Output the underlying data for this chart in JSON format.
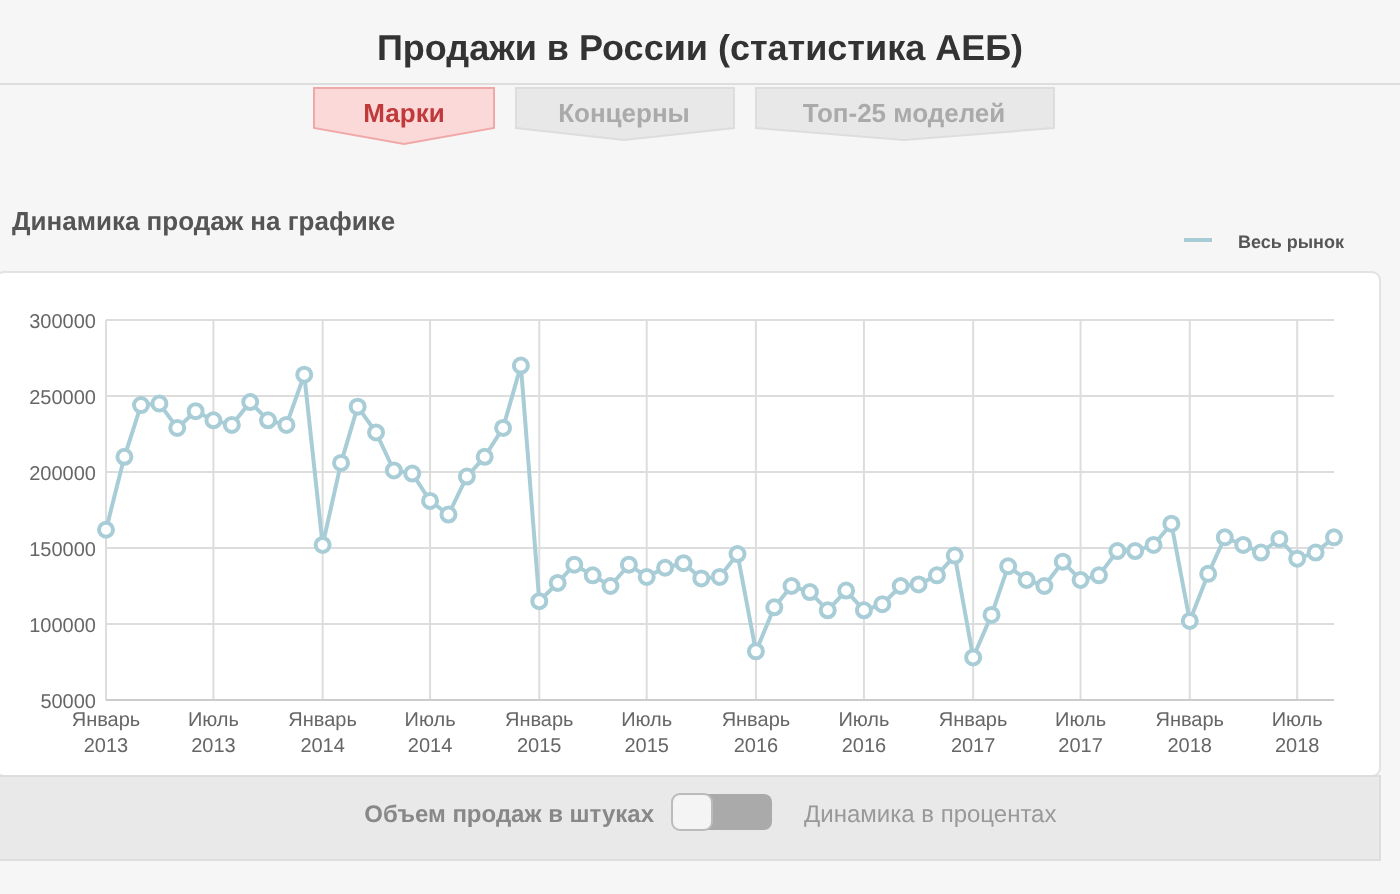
{
  "chart_data": {
    "type": "line",
    "title": "Продажи в России (статистика АЕБ)",
    "subtitle": "Динамика продаж на графике",
    "annotations": [
      "Марки",
      "Концерны",
      "Топ-25 моделей",
      "Объем продаж в штуках",
      "Динамика в процентах"
    ],
    "x": [
      "2013-01",
      "2013-02",
      "2013-03",
      "2013-04",
      "2013-05",
      "2013-06",
      "2013-07",
      "2013-08",
      "2013-09",
      "2013-10",
      "2013-11",
      "2013-12",
      "2014-01",
      "2014-02",
      "2014-03",
      "2014-04",
      "2014-05",
      "2014-06",
      "2014-07",
      "2014-08",
      "2014-09",
      "2014-10",
      "2014-11",
      "2014-12",
      "2015-01",
      "2015-02",
      "2015-03",
      "2015-04",
      "2015-05",
      "2015-06",
      "2015-07",
      "2015-08",
      "2015-09",
      "2015-10",
      "2015-11",
      "2015-12",
      "2016-01",
      "2016-02",
      "2016-03",
      "2016-04",
      "2016-05",
      "2016-06",
      "2016-07",
      "2016-08",
      "2016-09",
      "2016-10",
      "2016-11",
      "2016-12",
      "2017-01",
      "2017-02",
      "2017-03",
      "2017-04",
      "2017-05",
      "2017-06",
      "2017-07",
      "2017-08",
      "2017-09",
      "2017-10",
      "2017-11",
      "2017-12",
      "2018-01",
      "2018-02",
      "2018-03",
      "2018-04",
      "2018-05",
      "2018-06",
      "2018-07",
      "2018-08",
      "2018-09"
    ],
    "series": [
      {
        "name": "Весь рынок",
        "color": "#a9cdd6",
        "values": [
          162000,
          210000,
          244000,
          245000,
          229000,
          240000,
          234000,
          231000,
          246000,
          234000,
          231000,
          264000,
          152000,
          206000,
          243000,
          226000,
          201000,
          199000,
          181000,
          172000,
          197000,
          210000,
          229000,
          270000,
          115000,
          127000,
          139000,
          132000,
          125000,
          139000,
          131000,
          137000,
          140000,
          130000,
          131000,
          146000,
          82000,
          111000,
          125000,
          121000,
          109000,
          122000,
          109000,
          113000,
          125000,
          126000,
          132000,
          145000,
          78000,
          106000,
          138000,
          129000,
          125000,
          141000,
          129000,
          132000,
          148000,
          148000,
          152000,
          166000,
          102000,
          133000,
          157000,
          152000,
          147000,
          156000,
          143000,
          147000,
          157000
        ]
      }
    ],
    "xlim": [
      "2013-01",
      "2018-09"
    ],
    "xticks": [
      {
        "value": "2013-01",
        "label": "Январь 2013"
      },
      {
        "value": "2013-07",
        "label": "Июль 2013"
      },
      {
        "value": "2014-01",
        "label": "Январь 2014"
      },
      {
        "value": "2014-07",
        "label": "Июль 2014"
      },
      {
        "value": "2015-01",
        "label": "Январь 2015"
      },
      {
        "value": "2015-07",
        "label": "Июль 2015"
      },
      {
        "value": "2016-01",
        "label": "Январь 2016"
      },
      {
        "value": "2016-07",
        "label": "Июль 2016"
      },
      {
        "value": "2017-01",
        "label": "Январь 2017"
      },
      {
        "value": "2017-07",
        "label": "Июль 2017"
      },
      {
        "value": "2018-01",
        "label": "Январь 2018"
      },
      {
        "value": "2018-07",
        "label": "Июль 2018"
      }
    ],
    "ylim": [
      50000,
      300000
    ],
    "yticks": [
      50000,
      100000,
      150000,
      200000,
      250000,
      300000
    ],
    "grid": true,
    "legend": "top right",
    "marker": "circle",
    "line_style": "solid"
  }
}
